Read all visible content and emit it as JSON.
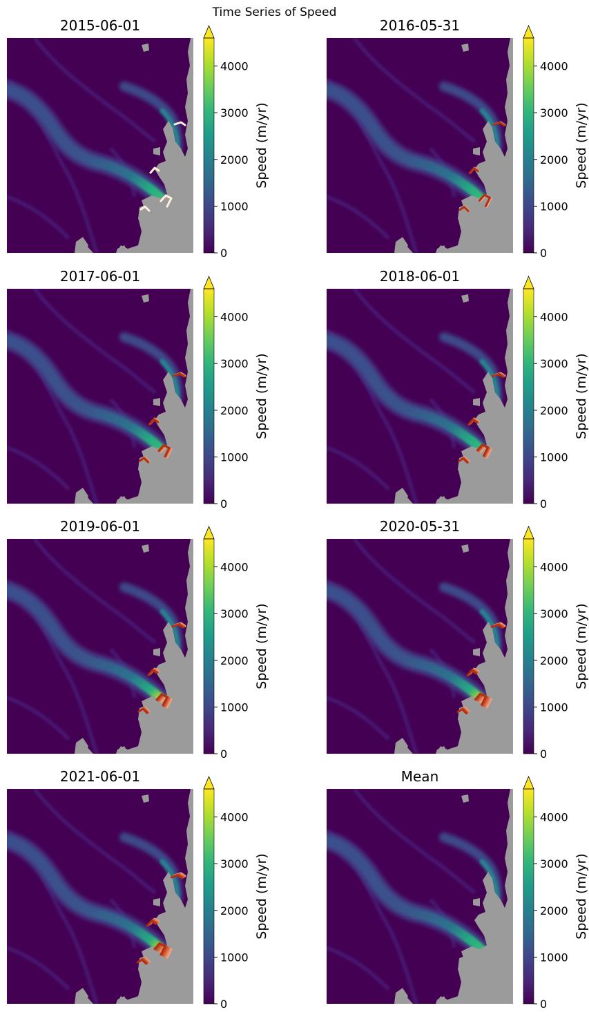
{
  "figure": {
    "title": "Time Series of Speed"
  },
  "chart_data": {
    "type": "heatmap",
    "title": "Time Series of Speed",
    "colormap": "viridis",
    "colorbar": {
      "label": "Speed (m/yr)",
      "ticks": [
        0,
        1000,
        2000,
        3000,
        4000
      ],
      "range": [
        0,
        4600
      ],
      "extend": "max"
    },
    "colors": {
      "background": "#440154",
      "land_mask": "#9b9b9b",
      "terminus_recent": "#f4a582",
      "terminus_old": "#b2300f"
    },
    "panels": [
      {
        "title": "2015-06-01",
        "terminus_count": 1
      },
      {
        "title": "2016-05-31",
        "terminus_count": 2
      },
      {
        "title": "2017-06-01",
        "terminus_count": 3
      },
      {
        "title": "2018-06-01",
        "terminus_count": 4
      },
      {
        "title": "2019-06-01",
        "terminus_count": 5
      },
      {
        "title": "2020-05-31",
        "terminus_count": 6
      },
      {
        "title": "2021-06-01",
        "terminus_count": 7
      },
      {
        "title": "Mean",
        "terminus_count": 0
      }
    ]
  }
}
